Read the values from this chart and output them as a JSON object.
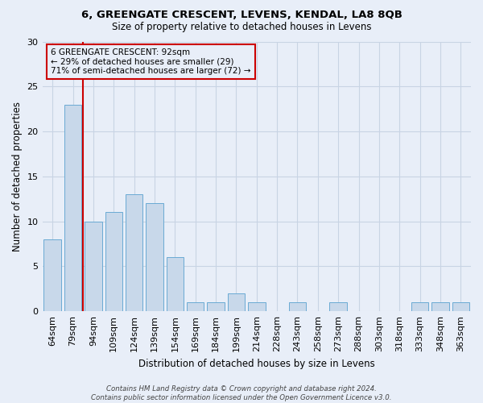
{
  "title1": "6, GREENGATE CRESCENT, LEVENS, KENDAL, LA8 8QB",
  "title2": "Size of property relative to detached houses in Levens",
  "xlabel": "Distribution of detached houses by size in Levens",
  "ylabel": "Number of detached properties",
  "categories": [
    "64sqm",
    "79sqm",
    "94sqm",
    "109sqm",
    "124sqm",
    "139sqm",
    "154sqm",
    "169sqm",
    "184sqm",
    "199sqm",
    "214sqm",
    "228sqm",
    "243sqm",
    "258sqm",
    "273sqm",
    "288sqm",
    "303sqm",
    "318sqm",
    "333sqm",
    "348sqm",
    "363sqm"
  ],
  "values": [
    8,
    23,
    10,
    11,
    13,
    12,
    6,
    1,
    1,
    2,
    1,
    0,
    1,
    0,
    1,
    0,
    0,
    0,
    1,
    1,
    1
  ],
  "bar_color": "#c8d8ea",
  "bar_edgecolor": "#6aaad4",
  "grid_color": "#c8d4e4",
  "vline_x": 1.5,
  "vline_color": "#cc0000",
  "annotation_text": "6 GREENGATE CRESCENT: 92sqm\n← 29% of detached houses are smaller (29)\n71% of semi-detached houses are larger (72) →",
  "annotation_box_edgecolor": "#cc0000",
  "ylim": [
    0,
    30
  ],
  "yticks": [
    0,
    5,
    10,
    15,
    20,
    25,
    30
  ],
  "footnote": "Contains HM Land Registry data © Crown copyright and database right 2024.\nContains public sector information licensed under the Open Government Licence v3.0.",
  "bg_color": "#e8eef8",
  "plot_bg_color": "#e8eef8"
}
